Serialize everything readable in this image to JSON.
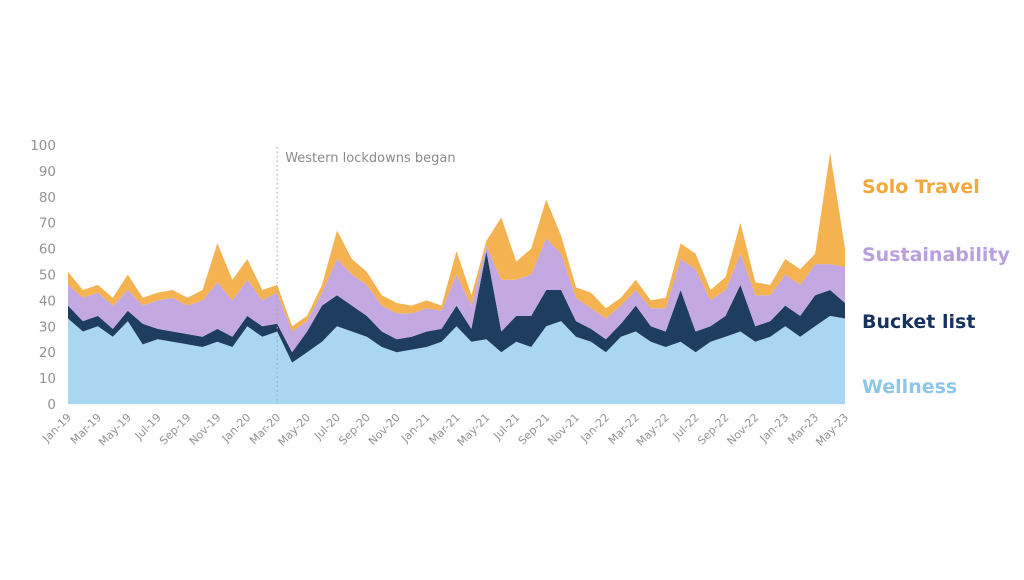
{
  "chart_data": {
    "type": "area",
    "stacked": true,
    "title": "",
    "xlabel": "",
    "ylabel": "",
    "ylim": [
      0,
      100
    ],
    "yticks": [
      0,
      10,
      20,
      30,
      40,
      50,
      60,
      70,
      80,
      90,
      100
    ],
    "x_tick_step": 2,
    "grid": false,
    "legend_position": "right",
    "x": [
      "Jan-19",
      "Feb-19",
      "Mar-19",
      "Apr-19",
      "May-19",
      "Jun-19",
      "Jul-19",
      "Aug-19",
      "Sep-19",
      "Oct-19",
      "Nov-19",
      "Dec-19",
      "Jan-20",
      "Feb-20",
      "Mar-20",
      "Apr-20",
      "May-20",
      "Jun-20",
      "Jul-20",
      "Aug-20",
      "Sep-20",
      "Oct-20",
      "Nov-20",
      "Dec-20",
      "Jan-21",
      "Feb-21",
      "Mar-21",
      "Apr-21",
      "May-21",
      "Jun-21",
      "Jul-21",
      "Aug-21",
      "Sep-21",
      "Oct-21",
      "Nov-21",
      "Dec-21",
      "Jan-22",
      "Feb-22",
      "Mar-22",
      "Apr-22",
      "May-22",
      "Jun-22",
      "Jul-22",
      "Aug-22",
      "Sep-22",
      "Oct-22",
      "Nov-22",
      "Dec-22",
      "Jan-23",
      "Feb-23",
      "Mar-23",
      "Apr-23",
      "May-23"
    ],
    "series": [
      {
        "name": "Wellness",
        "color": "#A9D6F0",
        "legend_color": "#8EC6EA",
        "values": [
          33,
          28,
          30,
          26,
          32,
          23,
          25,
          24,
          23,
          22,
          24,
          22,
          30,
          26,
          28,
          16,
          20,
          24,
          30,
          28,
          26,
          22,
          20,
          21,
          22,
          24,
          30,
          24,
          25,
          20,
          24,
          22,
          30,
          32,
          26,
          24,
          20,
          26,
          28,
          24,
          22,
          24,
          20,
          24,
          26,
          28,
          24,
          26,
          30,
          26,
          30,
          34,
          33
        ]
      },
      {
        "name": "Bucket list",
        "color": "#1F3E5F",
        "legend_color": "#16325F",
        "values": [
          5,
          4,
          4,
          3,
          4,
          8,
          4,
          4,
          4,
          4,
          5,
          4,
          4,
          4,
          3,
          4,
          8,
          14,
          12,
          10,
          8,
          6,
          5,
          5,
          6,
          5,
          8,
          5,
          34,
          8,
          10,
          12,
          14,
          12,
          6,
          5,
          5,
          5,
          10,
          6,
          6,
          20,
          8,
          6,
          8,
          18,
          6,
          6,
          8,
          8,
          12,
          10,
          6
        ]
      },
      {
        "name": "Sustainability",
        "color": "#C3A8E1",
        "legend_color": "#B9A0DC",
        "values": [
          8,
          9,
          9,
          9,
          8,
          7,
          11,
          13,
          11,
          14,
          18,
          14,
          14,
          10,
          12,
          8,
          4,
          5,
          14,
          12,
          12,
          10,
          10,
          9,
          9,
          7,
          12,
          9,
          2,
          20,
          14,
          16,
          20,
          14,
          9,
          8,
          8,
          7,
          6,
          7,
          9,
          12,
          24,
          10,
          10,
          12,
          12,
          10,
          12,
          12,
          12,
          10,
          14
        ]
      },
      {
        "name": "Solo Travel",
        "color": "#F4B350",
        "legend_color": "#F2A83D",
        "values": [
          5,
          3,
          3,
          3,
          6,
          3,
          3,
          3,
          3,
          4,
          15,
          8,
          8,
          4,
          3,
          2,
          2,
          3,
          11,
          6,
          5,
          4,
          4,
          3,
          3,
          2,
          9,
          4,
          2,
          24,
          7,
          10,
          15,
          7,
          4,
          6,
          4,
          3,
          4,
          3,
          4,
          6,
          6,
          4,
          5,
          12,
          5,
          4,
          6,
          6,
          4,
          43,
          7
        ]
      }
    ],
    "annotation": {
      "text": "Western lockdowns began",
      "x_label": "Mar-20",
      "x_index": 14
    }
  },
  "axis_style": {
    "tick_color": "#939393",
    "axis_line_color": "#e9e9e9",
    "annotation_line_color": "#a3a3a3"
  }
}
